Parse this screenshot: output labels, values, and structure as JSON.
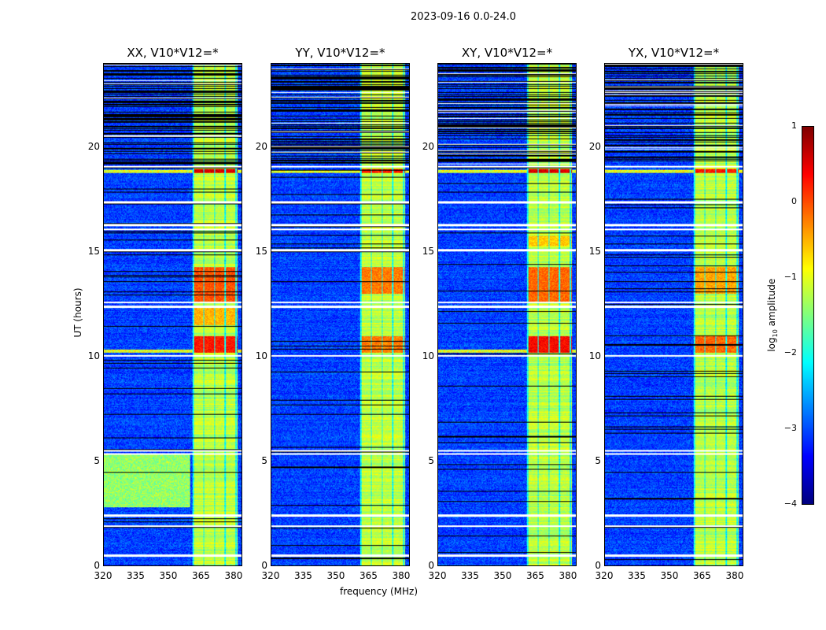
{
  "chart_data": {
    "type": "heatmap",
    "title": "2023-09-16 0.0-24.0",
    "xlabel": "frequency (MHz)",
    "ylabel": "UT (hours)",
    "xlim": [
      320,
      384
    ],
    "ylim": [
      0,
      24
    ],
    "xticks": [
      "320",
      "335",
      "350",
      "365",
      "380"
    ],
    "yticks": [
      "0",
      "5",
      "10",
      "15",
      "20"
    ],
    "colorbar": {
      "label": "log10 amplitude",
      "label_main": "log",
      "label_sub": "10",
      "label_tail": " amplitude",
      "range": [
        -4,
        1
      ],
      "ticks": [
        "1",
        "0",
        "−1",
        "−2",
        "−3",
        "−4"
      ],
      "colormap": "jet"
    },
    "panels": [
      {
        "title": "XX, V10*V12=*",
        "hot": [
          [
            10.2,
            11.0,
            0.3
          ],
          [
            12.6,
            14.3,
            0.0
          ],
          [
            18.8,
            19.0,
            0.6
          ],
          [
            11.5,
            12.4,
            -0.5
          ]
        ],
        "lowband_bright": [
          [
            2.8,
            5.3,
            -1.4
          ]
        ]
      },
      {
        "title": "YY, V10*V12=*",
        "hot": [
          [
            10.2,
            11.0,
            -0.2
          ],
          [
            13.0,
            14.3,
            -0.2
          ],
          [
            18.8,
            19.0,
            0.3
          ]
        ],
        "lowband_bright": []
      },
      {
        "title": "XY, V10*V12=*",
        "hot": [
          [
            10.2,
            11.0,
            0.4
          ],
          [
            12.6,
            14.3,
            -0.1
          ],
          [
            18.8,
            19.0,
            0.6
          ],
          [
            15.3,
            15.8,
            -0.6
          ]
        ],
        "lowband_bright": []
      },
      {
        "title": "YX, V10*V12=*",
        "hot": [
          [
            10.2,
            11.0,
            -0.1
          ],
          [
            13.0,
            14.3,
            -0.4
          ],
          [
            18.8,
            19.0,
            0.3
          ]
        ],
        "lowband_bright": []
      }
    ],
    "bright_band_mhz": [
      361,
      382
    ],
    "background_level": -3.1,
    "band_level": -1.2,
    "flagged_hours": [
      0.5,
      1.9,
      2.4,
      5.35,
      5.5,
      10.05,
      12.4,
      12.6,
      15.1,
      16.1,
      16.3,
      17.4,
      19.1
    ]
  }
}
